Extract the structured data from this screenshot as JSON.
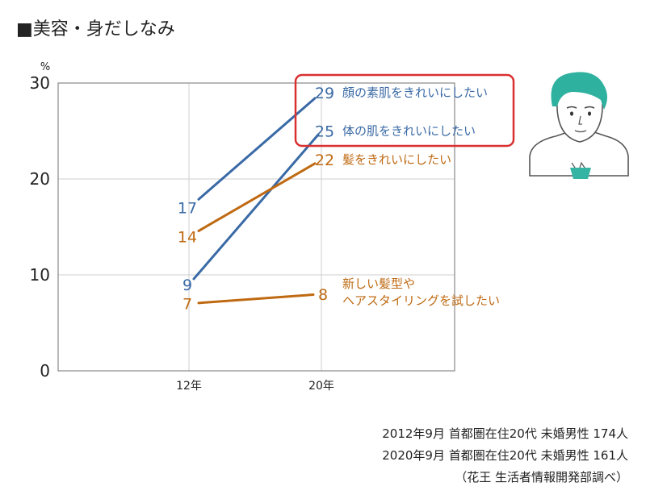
{
  "title": "■美容・身だしなみ",
  "source_lines": [
    "2012年9月 首都圏在住20代 未婚男性 174人",
    "2020年9月 首都圏在住20代 未婚男性 161人",
    "（花王 生活者情報開発部調べ）"
  ],
  "colors": {
    "blue": "#3a6aa6",
    "orange": "#bf6a12",
    "highlight": "#d93030",
    "grid": "#cfcfcf",
    "axis": "#888888"
  },
  "chart_data": {
    "type": "line",
    "title": "■美容・身だしなみ",
    "ylabel": "%",
    "xlabel": "",
    "categories": [
      "12年",
      "20年"
    ],
    "ylim": [
      0,
      30
    ],
    "yticks": [
      0,
      10,
      20,
      30
    ],
    "grid": true,
    "series": [
      {
        "name": "顔の素肌をきれいにしたい",
        "values": [
          17,
          29
        ],
        "color": "blue",
        "highlighted": true
      },
      {
        "name": "体の肌をきれいにしたい",
        "values": [
          9,
          25
        ],
        "color": "blue",
        "highlighted": true
      },
      {
        "name": "髪をきれいにしたい",
        "values": [
          14,
          22
        ],
        "color": "orange",
        "highlighted": false
      },
      {
        "name": "新しい髪型やヘアスタイリングを試したい",
        "name_lines": [
          "新しい髪型や",
          "ヘアスタイリングを試したい"
        ],
        "values": [
          7,
          8
        ],
        "color": "orange",
        "highlighted": false
      }
    ]
  }
}
